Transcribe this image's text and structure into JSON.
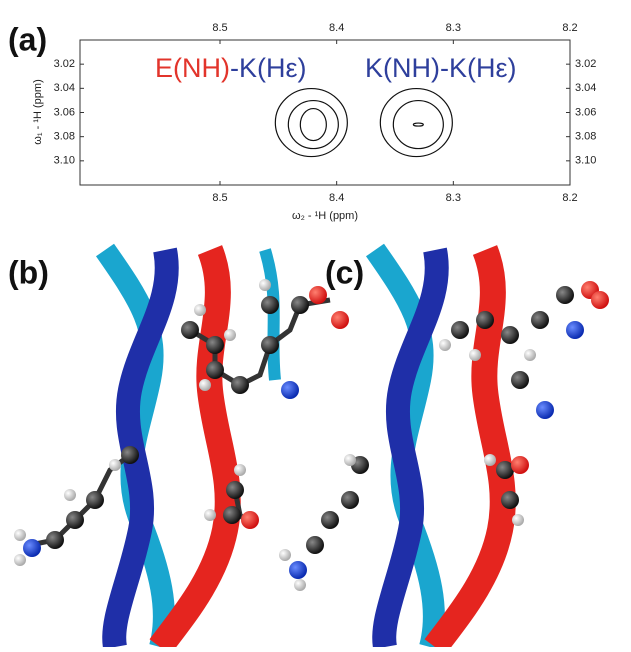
{
  "chart_data": {
    "type": "contour",
    "panel_label": "(a)",
    "xlabel": "ω₂ - ¹H (ppm)",
    "ylabel": "ω₁ - ¹H (ppm)",
    "xlim": [
      8.62,
      8.2
    ],
    "ylim": [
      3.0,
      3.12
    ],
    "xticks": [
      8.5,
      8.4,
      8.3,
      8.2
    ],
    "yticks": [
      3.02,
      3.04,
      3.06,
      3.08,
      {
        "value": 3.1,
        "label": "3.10"
      }
    ],
    "annotations": [
      {
        "parts": [
          {
            "text": "E(NH)",
            "color": "#e2342b"
          },
          {
            "text": "-K(Hε)",
            "color": "#2e3f9c"
          }
        ]
      },
      {
        "parts": [
          {
            "text": "K(NH)-K(Hε)",
            "color": "#2e3f9c"
          }
        ]
      }
    ],
    "peaks": {
      "x": [
        8.42,
        8.33
      ],
      "y": [
        3.07,
        3.07
      ]
    }
  },
  "panels": [
    "(b)",
    "(c)"
  ]
}
